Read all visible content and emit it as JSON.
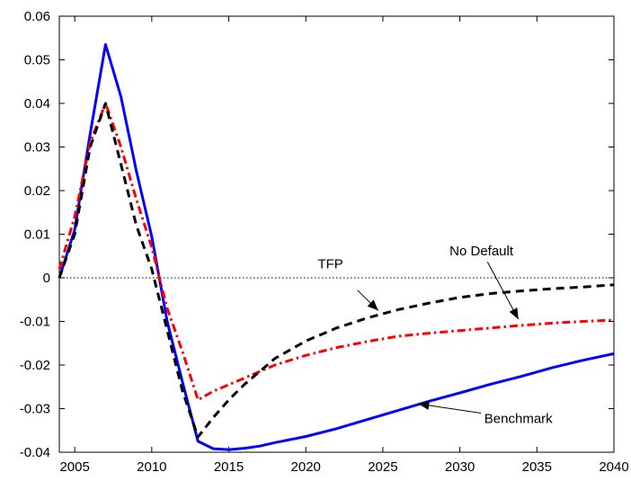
{
  "chart_data": {
    "type": "line",
    "title": "",
    "xlabel": "",
    "ylabel": "",
    "xlim": [
      2004,
      2040
    ],
    "ylim": [
      -0.04,
      0.06
    ],
    "x_ticks": [
      2005,
      2010,
      2015,
      2020,
      2025,
      2030,
      2035,
      2040
    ],
    "y_ticks": [
      -0.04,
      -0.03,
      -0.02,
      -0.01,
      0,
      0.01,
      0.02,
      0.03,
      0.04,
      0.05,
      0.06
    ],
    "x_tick_labels": [
      "2005",
      "2010",
      "2015",
      "2020",
      "2025",
      "2030",
      "2035",
      "2040"
    ],
    "y_tick_labels": [
      "-0.04",
      "-0.03",
      "-0.02",
      "-0.01",
      "0",
      "0.01",
      "0.02",
      "0.03",
      "0.04",
      "0.05",
      "0.06"
    ],
    "grid": false,
    "legend": "none",
    "zero_line": {
      "y": 0,
      "style": "dotted",
      "color": "#000000"
    },
    "series": [
      {
        "name": "Benchmark",
        "color": "#0000ff",
        "style": "solid",
        "x": [
          2004,
          2005,
          2006,
          2007,
          2008,
          2009,
          2010,
          2011,
          2012,
          2013,
          2014,
          2015,
          2016,
          2017,
          2018,
          2020,
          2022,
          2024,
          2026,
          2028,
          2030,
          2032,
          2034,
          2036,
          2038,
          2040
        ],
        "y": [
          0.0,
          0.011,
          0.033,
          0.0535,
          0.0415,
          0.0245,
          0.0095,
          -0.01,
          -0.024,
          -0.0375,
          -0.0392,
          -0.0394,
          -0.0391,
          -0.0386,
          -0.0378,
          -0.0364,
          -0.0346,
          -0.0325,
          -0.0304,
          -0.0283,
          -0.0264,
          -0.0244,
          -0.0226,
          -0.0206,
          -0.0189,
          -0.0174
        ]
      },
      {
        "name": "No Default",
        "color": "#ff0000",
        "style": "dash-dot",
        "x": [
          2004,
          2005,
          2006,
          2007,
          2008,
          2009,
          2010,
          2011,
          2012,
          2013,
          2014,
          2016,
          2018,
          2020,
          2022,
          2024,
          2026,
          2028,
          2030,
          2032,
          2034,
          2036,
          2038,
          2040
        ],
        "y": [
          0.002,
          0.014,
          0.031,
          0.04,
          0.03,
          0.018,
          0.007,
          -0.007,
          -0.017,
          -0.028,
          -0.026,
          -0.023,
          -0.02,
          -0.0178,
          -0.016,
          -0.0146,
          -0.0134,
          -0.0127,
          -0.0121,
          -0.0115,
          -0.0109,
          -0.0104,
          -0.01,
          -0.0097
        ]
      },
      {
        "name": "TFP",
        "color": "#000000",
        "style": "dashed",
        "x": [
          2004,
          2005,
          2006,
          2007,
          2008,
          2009,
          2010,
          2011,
          2012,
          2013,
          2014,
          2015,
          2016,
          2018,
          2020,
          2022,
          2024,
          2026,
          2028,
          2030,
          2032,
          2034,
          2036,
          2038,
          2040
        ],
        "y": [
          0.0,
          0.01,
          0.03,
          0.04,
          0.026,
          0.012,
          0.002,
          -0.012,
          -0.026,
          -0.0365,
          -0.032,
          -0.028,
          -0.0245,
          -0.0185,
          -0.0145,
          -0.0115,
          -0.0092,
          -0.0073,
          -0.0058,
          -0.0045,
          -0.0036,
          -0.003,
          -0.0025,
          -0.0021,
          -0.0016
        ]
      }
    ],
    "annotations": [
      {
        "text": "TFP",
        "x": 2021.6,
        "y": 0.0032,
        "arrow_to": [
          2024.7,
          -0.0075
        ]
      },
      {
        "text": "No Default",
        "x": 2031.4,
        "y": 0.0062,
        "arrow_to": [
          2033.8,
          -0.0095
        ]
      },
      {
        "text": "Benchmark",
        "x": 2033.8,
        "y": -0.0323,
        "arrow_to": [
          2027.3,
          -0.0289
        ]
      }
    ]
  }
}
